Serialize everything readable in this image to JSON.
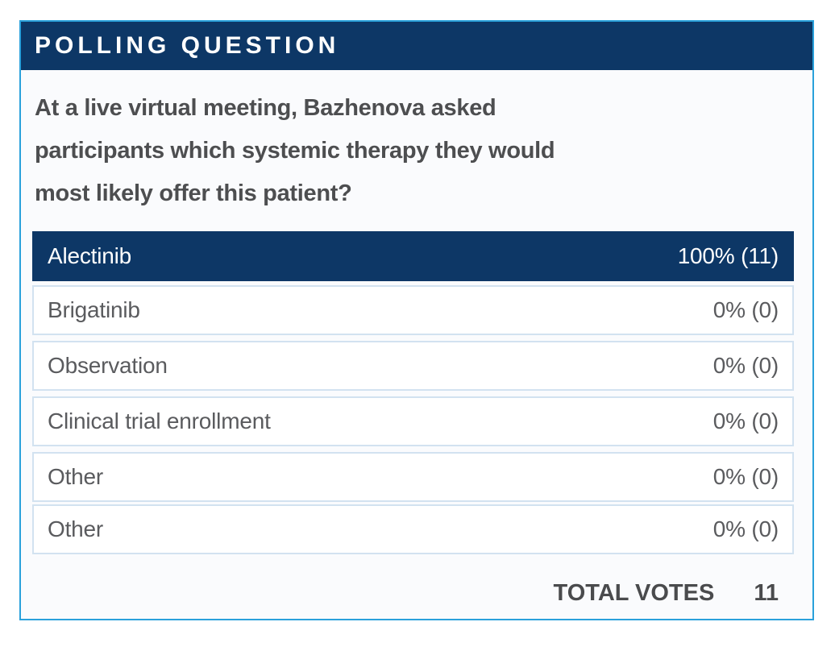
{
  "header": {
    "title": "POLLING QUESTION"
  },
  "question": {
    "text": "At a live virtual meeting, Bazhenova asked participants which systemic therapy they would most likely offer this patient?",
    "lines": [
      "At a live virtual meeting, Bazhenova asked",
      "participants which systemic therapy they would",
      "most likely offer this patient?"
    ]
  },
  "options": [
    {
      "label": "Alectinib",
      "percent": 100,
      "votes": 11,
      "result_display": "100% (11)",
      "selected": true
    },
    {
      "label": "Brigatinib",
      "percent": 0,
      "votes": 0,
      "result_display": "0% (0)",
      "selected": false
    },
    {
      "label": "Observation",
      "percent": 0,
      "votes": 0,
      "result_display": "0% (0)",
      "selected": false
    },
    {
      "label": "Clinical trial enrollment",
      "percent": 0,
      "votes": 0,
      "result_display": "0% (0)",
      "selected": false
    },
    {
      "label": "Other",
      "percent": 0,
      "votes": 0,
      "result_display": "0% (0)",
      "selected": false
    },
    {
      "label": "Other",
      "percent": 0,
      "votes": 0,
      "result_display": "0% (0)",
      "selected": false
    }
  ],
  "total": {
    "label": "TOTAL VOTES",
    "value": "11"
  },
  "colors": {
    "header_navy": "#0d3766",
    "card_border_blue": "#2aa1db",
    "row_border_blue": "#d2e2f0",
    "question_text": "#4d4e50",
    "option_text": "#5a5b5e"
  }
}
